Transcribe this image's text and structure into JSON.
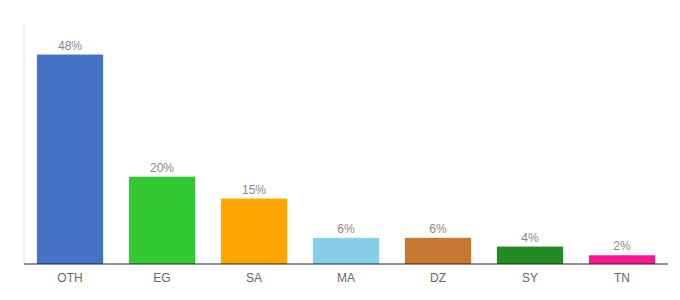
{
  "chart_data": {
    "type": "bar",
    "categories": [
      "OTH",
      "EG",
      "SA",
      "MA",
      "DZ",
      "SY",
      "TN"
    ],
    "values": [
      48,
      20,
      15,
      6,
      6,
      4,
      2
    ],
    "value_labels": [
      "48%",
      "20%",
      "15%",
      "6%",
      "6%",
      "4%",
      "2%"
    ],
    "colors": [
      "#4472C4",
      "#32C832",
      "#FFA500",
      "#87CEEB",
      "#C87832",
      "#228B22",
      "#FF1493"
    ],
    "ylim": [
      0,
      55
    ],
    "grid": false,
    "data_labels": true,
    "tick_labels": "x"
  }
}
